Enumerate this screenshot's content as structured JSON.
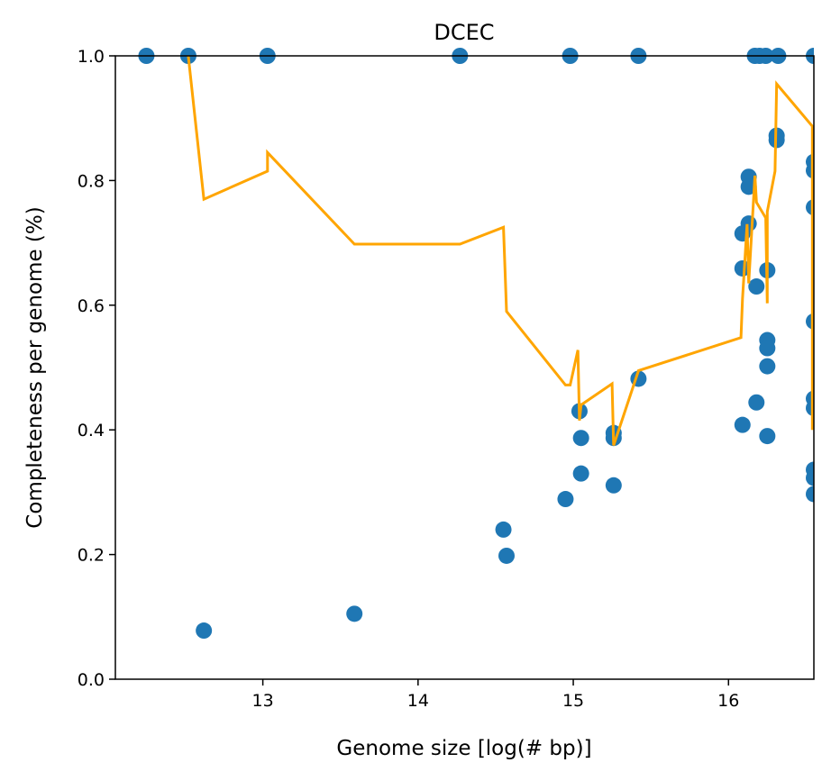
{
  "chart_data": {
    "type": "scatter",
    "title": "DCEC",
    "xlabel": "Genome size [log(# bp)]",
    "ylabel": "Completeness per genome (%)",
    "xlim": [
      12.05,
      16.55
    ],
    "ylim": [
      0.0,
      1.0
    ],
    "xticks": [
      13,
      14,
      15,
      16
    ],
    "xtick_labels": [
      "13",
      "14",
      "15",
      "16"
    ],
    "yticks": [
      0.0,
      0.2,
      0.4,
      0.6,
      0.8,
      1.0
    ],
    "ytick_labels": [
      "0.0",
      "0.2",
      "0.4",
      "0.6",
      "0.8",
      "1.0"
    ],
    "grid": false,
    "colors": {
      "points": "#1f77b4",
      "line": "#ffa500"
    },
    "series": [
      {
        "kind": "scatter",
        "points": [
          [
            12.25,
            1.0
          ],
          [
            12.52,
            1.0
          ],
          [
            12.62,
            0.078
          ],
          [
            13.03,
            1.0
          ],
          [
            13.59,
            0.105
          ],
          [
            14.27,
            1.0
          ],
          [
            14.55,
            0.24
          ],
          [
            14.57,
            0.198
          ],
          [
            14.95,
            0.289
          ],
          [
            14.98,
            1.0
          ],
          [
            15.04,
            0.43
          ],
          [
            15.05,
            0.387
          ],
          [
            15.05,
            0.33
          ],
          [
            15.26,
            0.395
          ],
          [
            15.26,
            0.387
          ],
          [
            15.26,
            0.311
          ],
          [
            15.42,
            1.0
          ],
          [
            15.42,
            0.482
          ],
          [
            16.09,
            0.715
          ],
          [
            16.09,
            0.659
          ],
          [
            16.09,
            0.408
          ],
          [
            16.13,
            0.806
          ],
          [
            16.13,
            0.79
          ],
          [
            16.13,
            0.731
          ],
          [
            16.17,
            1.0
          ],
          [
            16.18,
            0.63
          ],
          [
            16.18,
            0.444
          ],
          [
            16.2,
            1.0
          ],
          [
            16.24,
            1.0
          ],
          [
            16.25,
            0.656
          ],
          [
            16.25,
            0.544
          ],
          [
            16.25,
            0.531
          ],
          [
            16.25,
            0.502
          ],
          [
            16.25,
            0.39
          ],
          [
            16.31,
            0.872
          ],
          [
            16.31,
            0.865
          ],
          [
            16.32,
            1.0
          ],
          [
            16.55,
            1.0
          ],
          [
            16.55,
            0.83
          ],
          [
            16.55,
            0.816
          ],
          [
            16.55,
            0.757
          ],
          [
            16.55,
            0.574
          ],
          [
            16.55,
            0.45
          ],
          [
            16.55,
            0.435
          ],
          [
            16.55,
            0.336
          ],
          [
            16.55,
            0.323
          ],
          [
            16.55,
            0.297
          ]
        ]
      },
      {
        "kind": "line",
        "points": [
          [
            12.52,
            1.0
          ],
          [
            12.62,
            0.77
          ],
          [
            13.03,
            0.815
          ],
          [
            13.03,
            0.845
          ],
          [
            13.59,
            0.698
          ],
          [
            14.27,
            0.698
          ],
          [
            14.55,
            0.725
          ],
          [
            14.57,
            0.59
          ],
          [
            14.95,
            0.472
          ],
          [
            14.98,
            0.472
          ],
          [
            15.03,
            0.528
          ],
          [
            15.04,
            0.415
          ],
          [
            15.05,
            0.44
          ],
          [
            15.25,
            0.474
          ],
          [
            15.26,
            0.375
          ],
          [
            15.42,
            0.495
          ],
          [
            16.08,
            0.548
          ],
          [
            16.09,
            0.61
          ],
          [
            16.12,
            0.73
          ],
          [
            16.13,
            0.635
          ],
          [
            16.17,
            0.808
          ],
          [
            16.18,
            0.765
          ],
          [
            16.24,
            0.74
          ],
          [
            16.25,
            0.603
          ],
          [
            16.25,
            0.75
          ],
          [
            16.3,
            0.815
          ],
          [
            16.31,
            0.955
          ],
          [
            16.54,
            0.887
          ],
          [
            16.54,
            0.4
          ],
          [
            16.55,
            0.835
          ]
        ]
      }
    ]
  }
}
